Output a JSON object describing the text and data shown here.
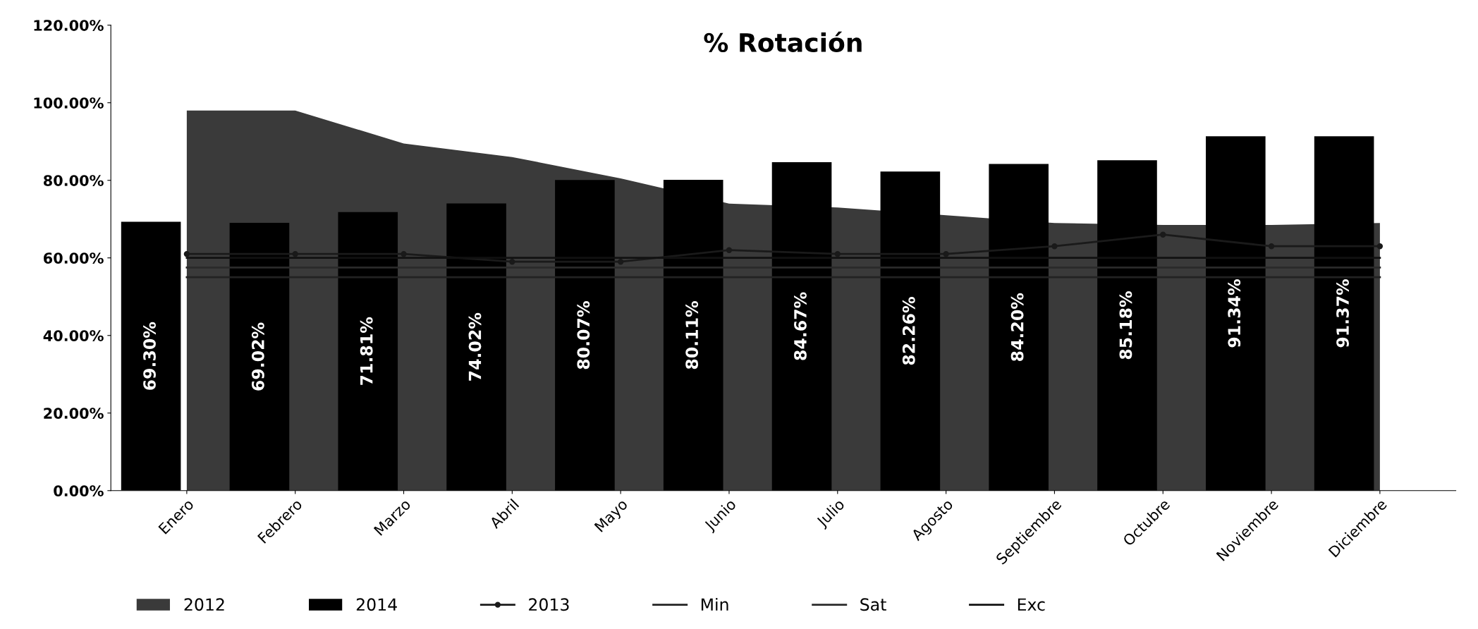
{
  "chart_data": {
    "type": "bar",
    "title": "% Rotación",
    "categories": [
      "Enero",
      "Febrero",
      "Marzo",
      "Abril",
      "Mayo",
      "Junio",
      "Julio",
      "Agosto",
      "Septiembre",
      "Octubre",
      "Noviembre",
      "Diciembre"
    ],
    "series": [
      {
        "name": "2012",
        "type": "area",
        "color": "#3a3a3a",
        "values": [
          98,
          98,
          89.5,
          86,
          80.5,
          74,
          73,
          71,
          69,
          68.5,
          68.5,
          69
        ]
      },
      {
        "name": "2014",
        "color": "#000000",
        "values": [
          69.3,
          69.02,
          71.81,
          74.02,
          80.07,
          80.11,
          84.67,
          82.26,
          84.2,
          85.18,
          91.34,
          91.37
        ],
        "value_labels": [
          "69.30%",
          "69.02%",
          "71.81%",
          "74.02%",
          "80.07%",
          "80.11%",
          "84.67%",
          "82.26%",
          "84.20%",
          "85.18%",
          "91.34%",
          "91.37%"
        ]
      },
      {
        "name": "2013",
        "type": "line",
        "color": "#1a1a1a",
        "marker": "circle",
        "values": [
          61,
          61,
          61,
          59,
          59,
          62,
          61,
          61,
          63,
          66,
          63,
          63
        ]
      },
      {
        "name": "Min",
        "type": "line",
        "color": "#222222",
        "values": [
          55,
          55,
          55,
          55,
          55,
          55,
          55,
          55,
          55,
          55,
          55,
          55
        ]
      },
      {
        "name": "Sat",
        "type": "line",
        "color": "#2a2a2a",
        "values": [
          57.5,
          57.5,
          57.5,
          57.5,
          57.5,
          57.5,
          57.5,
          57.5,
          57.5,
          57.5,
          57.5,
          57.5
        ]
      },
      {
        "name": "Exc",
        "type": "line",
        "color": "#111111",
        "values": [
          60,
          60,
          60,
          60,
          60,
          60,
          60,
          60,
          60,
          60,
          60,
          60
        ]
      }
    ],
    "ylim": [
      0,
      120
    ],
    "yticks": [
      {
        "value": 0,
        "label": "0.00%"
      },
      {
        "value": 20,
        "label": "20.00%"
      },
      {
        "value": 40,
        "label": "40.00%"
      },
      {
        "value": 60,
        "label": "60.00%"
      },
      {
        "value": 80,
        "label": "80.00%"
      },
      {
        "value": 100,
        "label": "100.00%"
      },
      {
        "value": 120,
        "label": "120.00%"
      }
    ],
    "grid": false,
    "legend": "bottom"
  }
}
